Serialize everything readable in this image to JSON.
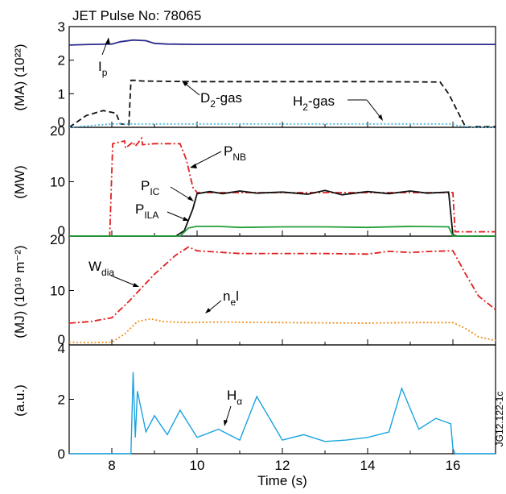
{
  "chart_data": [
    {
      "type": "line",
      "title": "JET Pulse No: 78065",
      "ylabel": "(MA) (10²²)",
      "ylim": [
        0,
        3
      ],
      "yticks": [
        "0",
        "1",
        "2",
        "3"
      ],
      "series": [
        {
          "name": "Ip",
          "color": "#2b2b8f",
          "dash": "solid",
          "x": [
            7,
            7.5,
            8,
            8.2,
            8.5,
            8.8,
            9,
            9.3,
            10,
            12,
            14,
            16,
            17
          ],
          "y": [
            2.45,
            2.47,
            2.48,
            2.55,
            2.6,
            2.58,
            2.5,
            2.48,
            2.47,
            2.47,
            2.47,
            2.47,
            2.47
          ]
        },
        {
          "name": "D2-gas",
          "color": "#111111",
          "dash": "dash",
          "x": [
            7,
            7.4,
            7.8,
            8.1,
            8.2,
            8.4,
            8.45,
            8.55,
            8.7,
            10,
            12,
            14,
            15.7,
            15.9,
            16.3,
            16.5,
            17
          ],
          "y": [
            0.0,
            0.35,
            0.5,
            0.42,
            0.1,
            0.08,
            1.4,
            1.4,
            1.38,
            1.36,
            1.36,
            1.36,
            1.35,
            1.0,
            0.0,
            0.02,
            0.02
          ]
        },
        {
          "name": "H2-gas",
          "color": "#4fb8e0",
          "dash": "dot",
          "x": [
            7,
            7.5,
            8,
            9,
            10,
            12,
            14,
            15.5,
            16.0,
            16.1,
            16.5,
            17
          ],
          "y": [
            0.0,
            0.05,
            0.1,
            0.1,
            0.1,
            0.1,
            0.1,
            0.1,
            0.1,
            0.05,
            0.0,
            0.0
          ]
        }
      ],
      "annotations": {
        "ip": {
          "main": "I",
          "sub": "p"
        },
        "d2": {
          "main": "D",
          "sub": "2",
          "rest": "-gas"
        },
        "h2": {
          "main": "H",
          "sub": "2",
          "rest": "-gas"
        }
      }
    },
    {
      "type": "line",
      "ylabel": "(MW)",
      "ylim": [
        0,
        20
      ],
      "yticks": [
        "0",
        "10",
        "20"
      ],
      "series": [
        {
          "name": "PNB",
          "color": "#e02020",
          "dash": "dashdot",
          "x": [
            7,
            7.95,
            8.02,
            8.3,
            8.32,
            8.5,
            8.55,
            8.7,
            8.72,
            9.0,
            9.6,
            9.75,
            9.9,
            10.0,
            10.3,
            12,
            14,
            16.0,
            16.05,
            16.4,
            17
          ],
          "y": [
            0,
            0,
            17,
            17.5,
            16.2,
            17.3,
            16.5,
            18,
            16.8,
            17,
            17,
            14,
            9,
            8,
            8,
            8,
            8,
            8,
            0.8,
            0.8,
            0.8
          ]
        },
        {
          "name": "PIC",
          "color": "#111111",
          "dash": "solid",
          "x": [
            7,
            9.5,
            9.7,
            9.9,
            10.0,
            10.3,
            10.6,
            11,
            11.4,
            12,
            12.6,
            13,
            13.4,
            14,
            14.5,
            15,
            15.4,
            15.9,
            16.0,
            16.1,
            17
          ],
          "y": [
            0,
            0,
            1,
            5,
            7.8,
            8.2,
            7.8,
            8.3,
            7.9,
            8.1,
            7.7,
            8.4,
            7.6,
            8.2,
            7.8,
            8.3,
            7.9,
            8.1,
            0.2,
            0,
            0
          ]
        },
        {
          "name": "PILA",
          "color": "#22a03a",
          "dash": "solid",
          "x": [
            7,
            9.6,
            9.8,
            10.0,
            10.5,
            11,
            12,
            13,
            14,
            15,
            15.9,
            16.0,
            17
          ],
          "y": [
            0,
            0,
            1.5,
            1.8,
            1.8,
            1.6,
            1.7,
            1.7,
            1.6,
            1.8,
            1.7,
            0,
            0
          ]
        }
      ],
      "annotations": {
        "pnb": {
          "main": "P",
          "sub": "NB"
        },
        "pic": {
          "main": "P",
          "sub": "IC"
        },
        "pila": {
          "main": "P",
          "sub": "ILA"
        }
      }
    },
    {
      "type": "line",
      "ylabel": "(MJ) (10¹⁹ m⁻²)",
      "ylim": [
        0,
        20
      ],
      "yticks": [
        "0",
        "10",
        "20"
      ],
      "series": [
        {
          "name": "Wdia",
          "color": "#e02020",
          "dash": "dashdot",
          "x": [
            7,
            7.5,
            8,
            8.4,
            9,
            9.5,
            9.8,
            10,
            11,
            12,
            13,
            14,
            14.5,
            15,
            15.5,
            16,
            16.3,
            16.6,
            17
          ],
          "y": [
            4,
            4.3,
            5,
            8,
            13,
            16.5,
            18,
            17.3,
            16.8,
            16.8,
            16.8,
            16.7,
            17.2,
            17,
            17.2,
            17.3,
            13,
            9,
            6.5
          ]
        },
        {
          "name": "nel",
          "color": "#f0901a",
          "dash": "dot",
          "x": [
            7,
            7.5,
            8,
            8.3,
            8.6,
            8.9,
            9.2,
            9.8,
            10.5,
            12,
            14,
            15,
            16,
            16.3,
            16.6,
            17
          ],
          "y": [
            0.5,
            0.4,
            0.5,
            2,
            4.3,
            4.8,
            4.3,
            4.1,
            4.2,
            4.1,
            4.0,
            4.1,
            4.1,
            3,
            1.5,
            0.8
          ]
        }
      ],
      "annotations": {
        "wdia": {
          "main": "W",
          "sub": "dia"
        },
        "nel": {
          "main": "n",
          "sub": "e",
          "rest": "l"
        }
      }
    },
    {
      "type": "line",
      "ylabel": "(a.u.)",
      "xlabel": "Time (s)",
      "ylim": [
        0,
        4
      ],
      "yticks": [
        "0",
        "2",
        "4"
      ],
      "xlim": [
        7,
        17
      ],
      "xticks": [
        "8",
        "10",
        "12",
        "14",
        "16"
      ],
      "series": [
        {
          "name": "Hα",
          "color": "#1aa3e0",
          "dash": "solid",
          "x": [
            7,
            8.45,
            8.5,
            8.55,
            8.6,
            8.8,
            9.0,
            9.3,
            9.6,
            10,
            10.5,
            11,
            11.4,
            12,
            12.5,
            13,
            13.5,
            14,
            14.5,
            14.8,
            15.2,
            15.6,
            15.95,
            16.0,
            16.05,
            17
          ],
          "y": [
            0,
            0,
            3.0,
            0.6,
            2.3,
            0.8,
            1.4,
            0.7,
            1.6,
            0.6,
            0.9,
            0.5,
            2.1,
            0.5,
            0.7,
            0.45,
            0.5,
            0.6,
            0.8,
            2.4,
            0.9,
            1.3,
            1.1,
            0.2,
            0,
            0
          ]
        }
      ],
      "annotations": {
        "halpha": {
          "main": "H",
          "sub": "α"
        }
      }
    }
  ],
  "side_code": "JG12.122-1c"
}
